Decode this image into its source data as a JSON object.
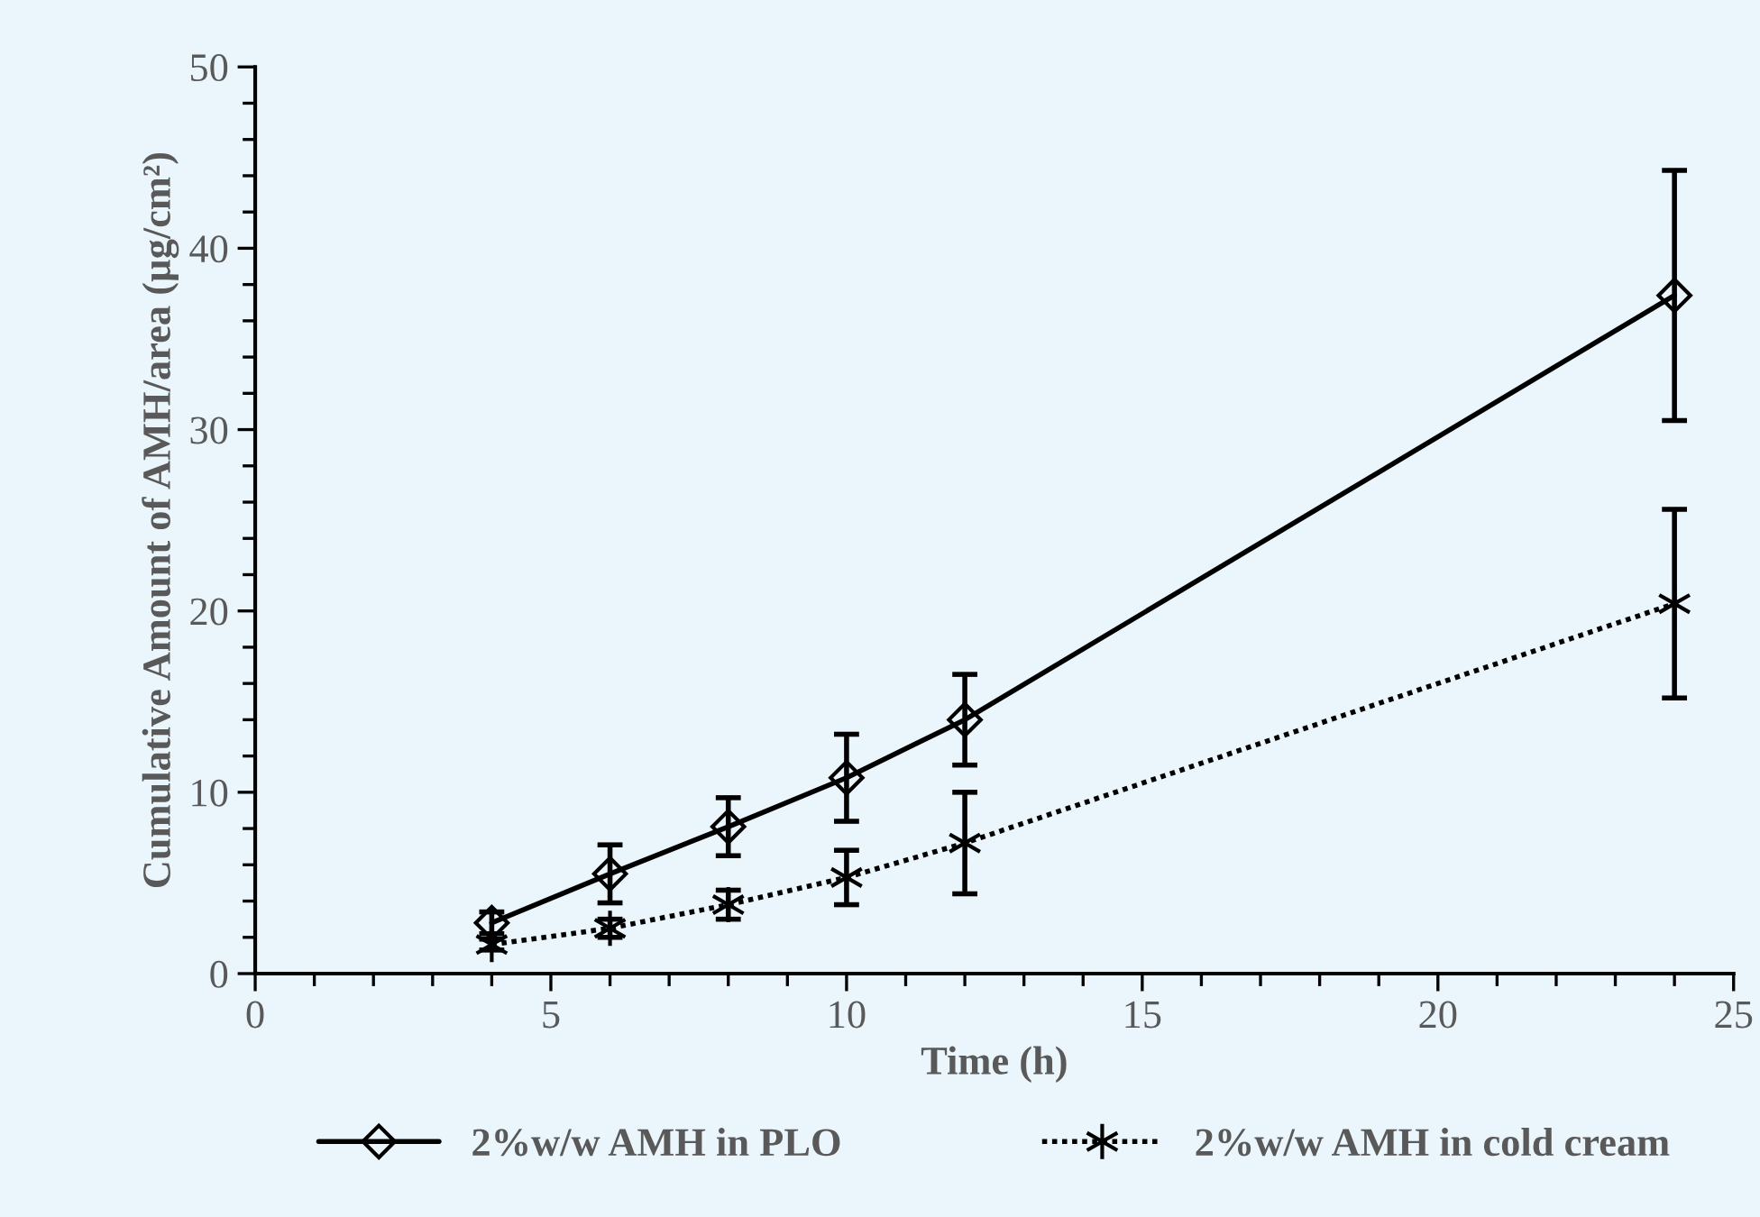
{
  "chart_data": {
    "type": "line",
    "xlabel": "Time (h)",
    "ylabel": "Cumulative Amount of AMH/area (µg/cm²)",
    "x": [
      4,
      6,
      8,
      10,
      12,
      24
    ],
    "series": [
      {
        "name": "2%w/w AMH in PLO",
        "color": "#000000",
        "marker": "diamond",
        "line_style": "solid",
        "values": [
          2.8,
          5.5,
          8.1,
          10.8,
          14.0,
          37.4
        ],
        "errors": [
          0.6,
          1.6,
          1.6,
          2.4,
          2.5,
          6.9
        ]
      },
      {
        "name": "2%w/w AMH in cold cream",
        "color": "#000000",
        "marker": "cross",
        "line_style": "dotted",
        "values": [
          1.6,
          2.5,
          3.8,
          5.3,
          7.2,
          20.4
        ],
        "errors": [
          0.3,
          0.5,
          0.8,
          1.5,
          2.8,
          5.2
        ]
      }
    ],
    "xlim": [
      0,
      25
    ],
    "xticks": [
      0,
      5,
      10,
      15,
      20,
      25
    ],
    "ylim": [
      0,
      50
    ],
    "yticks": [
      0,
      10,
      20,
      30,
      40,
      50
    ],
    "grid": false,
    "legend": "bottom"
  }
}
